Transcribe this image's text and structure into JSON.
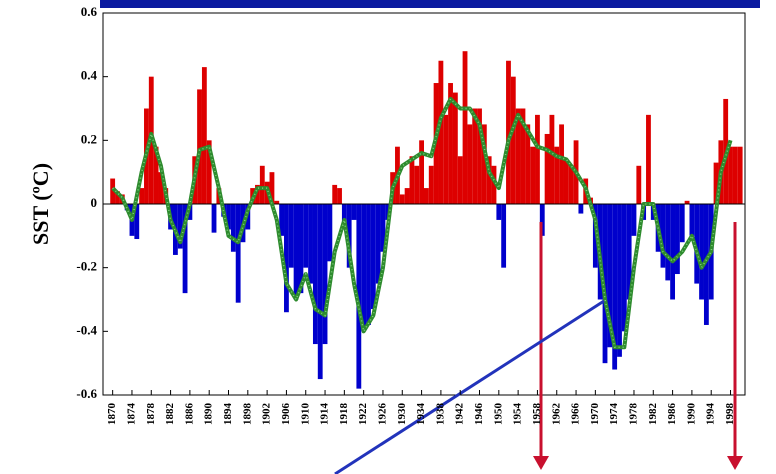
{
  "chart_data": {
    "type": "bar",
    "y_label": "SST (ºC)",
    "x": [
      1870,
      1871,
      1872,
      1873,
      1874,
      1875,
      1876,
      1877,
      1878,
      1879,
      1880,
      1881,
      1882,
      1883,
      1884,
      1885,
      1886,
      1887,
      1888,
      1889,
      1890,
      1891,
      1892,
      1893,
      1894,
      1895,
      1896,
      1897,
      1898,
      1899,
      1900,
      1901,
      1902,
      1903,
      1904,
      1905,
      1906,
      1907,
      1908,
      1909,
      1910,
      1911,
      1912,
      1913,
      1914,
      1915,
      1916,
      1917,
      1918,
      1919,
      1920,
      1921,
      1922,
      1923,
      1924,
      1925,
      1926,
      1927,
      1928,
      1929,
      1930,
      1931,
      1932,
      1933,
      1934,
      1935,
      1936,
      1937,
      1938,
      1939,
      1940,
      1941,
      1942,
      1943,
      1944,
      1945,
      1946,
      1947,
      1948,
      1949,
      1950,
      1951,
      1952,
      1953,
      1954,
      1955,
      1956,
      1957,
      1958,
      1959,
      1960,
      1961,
      1962,
      1963,
      1964,
      1965,
      1966,
      1967,
      1968,
      1969,
      1970,
      1971,
      1972,
      1973,
      1974,
      1975,
      1976,
      1977,
      1978,
      1979,
      1980,
      1981,
      1982,
      1983,
      1984,
      1985,
      1986,
      1987,
      1988,
      1989,
      1990,
      1991,
      1992,
      1993,
      1994,
      1995,
      1996,
      1997,
      1998,
      1999,
      2000
    ],
    "values": [
      0.08,
      0.04,
      0.03,
      -0.02,
      -0.1,
      -0.11,
      0.05,
      0.3,
      0.4,
      0.18,
      0.1,
      0.05,
      -0.08,
      -0.16,
      -0.14,
      -0.28,
      -0.05,
      0.15,
      0.36,
      0.43,
      0.2,
      -0.09,
      0.05,
      -0.04,
      -0.08,
      -0.15,
      -0.31,
      -0.12,
      -0.08,
      0.05,
      0.06,
      0.12,
      0.07,
      0.1,
      0.01,
      -0.1,
      -0.34,
      -0.2,
      -0.3,
      -0.28,
      -0.2,
      -0.25,
      -0.44,
      -0.55,
      -0.44,
      -0.18,
      0.06,
      0.05,
      -0.08,
      -0.2,
      -0.05,
      -0.58,
      -0.4,
      -0.38,
      -0.33,
      -0.25,
      -0.15,
      -0.05,
      0.1,
      0.18,
      0.03,
      0.05,
      0.15,
      0.12,
      0.2,
      0.05,
      0.12,
      0.38,
      0.45,
      0.28,
      0.38,
      0.35,
      0.15,
      0.48,
      0.25,
      0.3,
      0.3,
      0.25,
      0.15,
      0.12,
      -0.05,
      -0.2,
      0.45,
      0.4,
      0.3,
      0.3,
      0.25,
      0.18,
      0.28,
      -0.1,
      0.22,
      0.28,
      0.18,
      0.25,
      0.14,
      0.12,
      0.2,
      -0.03,
      0.08,
      0.02,
      -0.2,
      -0.3,
      -0.5,
      -0.45,
      -0.52,
      -0.48,
      -0.4,
      -0.3,
      -0.1,
      0.12,
      -0.05,
      0.28,
      -0.05,
      -0.15,
      -0.2,
      -0.24,
      -0.3,
      -0.22,
      -0.12,
      0.01,
      -0.1,
      -0.25,
      -0.3,
      -0.38,
      -0.3,
      0.13,
      0.2,
      0.33,
      0.18,
      0.18,
      0.18
    ],
    "positive_color": "#dd0000",
    "negative_color": "#0000cc",
    "smooth": {
      "color": "#2e8b2e",
      "x": [
        1870,
        1872,
        1874,
        1876,
        1878,
        1880,
        1882,
        1884,
        1886,
        1888,
        1890,
        1892,
        1894,
        1896,
        1898,
        1900,
        1902,
        1904,
        1906,
        1908,
        1910,
        1912,
        1914,
        1916,
        1918,
        1920,
        1922,
        1924,
        1926,
        1928,
        1930,
        1932,
        1934,
        1936,
        1938,
        1940,
        1942,
        1944,
        1946,
        1948,
        1950,
        1952,
        1954,
        1956,
        1958,
        1960,
        1962,
        1964,
        1966,
        1968,
        1970,
        1972,
        1974,
        1976,
        1978,
        1980,
        1982,
        1984,
        1986,
        1988,
        1990,
        1992,
        1994,
        1996,
        1998
      ],
      "values": [
        0.05,
        0.02,
        -0.05,
        0.1,
        0.22,
        0.12,
        -0.05,
        -0.12,
        0.0,
        0.17,
        0.18,
        0.05,
        -0.1,
        -0.12,
        -0.02,
        0.05,
        0.05,
        -0.05,
        -0.25,
        -0.3,
        -0.22,
        -0.33,
        -0.35,
        -0.15,
        -0.05,
        -0.25,
        -0.4,
        -0.35,
        -0.2,
        0.05,
        0.12,
        0.14,
        0.16,
        0.15,
        0.27,
        0.33,
        0.3,
        0.3,
        0.25,
        0.1,
        0.05,
        0.2,
        0.28,
        0.23,
        0.18,
        0.17,
        0.15,
        0.14,
        0.1,
        0.05,
        -0.05,
        -0.3,
        -0.45,
        -0.45,
        -0.2,
        0.0,
        0.0,
        -0.15,
        -0.18,
        -0.15,
        -0.1,
        -0.2,
        -0.15,
        0.1,
        0.2
      ]
    },
    "xlim": [
      1868,
      2001
    ],
    "xticks": [
      1870,
      1874,
      1878,
      1882,
      1886,
      1890,
      1894,
      1898,
      1902,
      1906,
      1910,
      1914,
      1918,
      1922,
      1926,
      1930,
      1934,
      1938,
      1942,
      1946,
      1950,
      1954,
      1958,
      1962,
      1966,
      1970,
      1974,
      1978,
      1982,
      1986,
      1990,
      1994,
      1998
    ],
    "ylim": [
      -0.6,
      0.6
    ],
    "yticks": [
      -0.6,
      -0.4,
      -0.2,
      0,
      0.2,
      0.4,
      0.6
    ]
  }
}
